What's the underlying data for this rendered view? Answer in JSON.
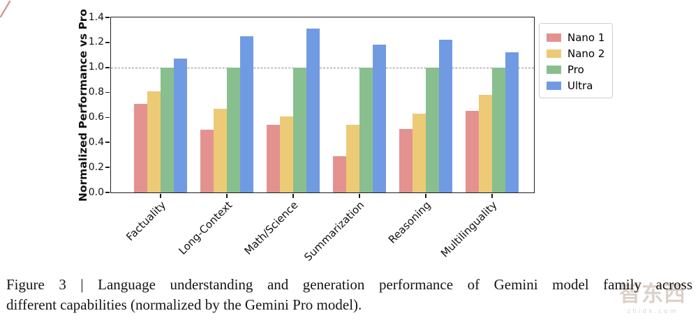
{
  "chart_data": {
    "type": "bar",
    "title": "",
    "ylabel": "Normalized Performance vs Pro",
    "xlabel": "",
    "categories": [
      "Factuality",
      "Long-Context",
      "Math/Science",
      "Summarization",
      "Reasoning",
      "Multilinguality"
    ],
    "series": [
      {
        "name": "Nano 1",
        "color": "#E39290",
        "values": [
          0.71,
          0.5,
          0.54,
          0.29,
          0.51,
          0.65
        ]
      },
      {
        "name": "Nano 2",
        "color": "#ECCA76",
        "values": [
          0.81,
          0.67,
          0.61,
          0.54,
          0.63,
          0.78
        ]
      },
      {
        "name": "Pro",
        "color": "#89BF8F",
        "values": [
          1.0,
          1.0,
          1.0,
          1.0,
          1.0,
          1.0
        ]
      },
      {
        "name": "Ultra",
        "color": "#709BE2",
        "values": [
          1.07,
          1.25,
          1.31,
          1.18,
          1.22,
          1.12
        ]
      }
    ],
    "ylim": [
      0,
      1.4
    ],
    "yticks": [
      "0.0",
      "0.2",
      "0.4",
      "0.6",
      "0.8",
      "1.0",
      "1.2",
      "1.4"
    ],
    "reference_line": {
      "value": 1.0,
      "color": "#8a8a8a",
      "style": "dashed"
    },
    "legend": {
      "position": "outside-right",
      "entries": [
        "Nano 1",
        "Nano 2",
        "Pro",
        "Ultra"
      ]
    },
    "grid": false,
    "xtick_rotation_deg": 45
  },
  "caption": {
    "line1": "Figure 3 | Language understanding and generation performance of Gemini model family across",
    "line2": "different capabilities (normalized by the Gemini Pro model)."
  },
  "watermark": {
    "logo_text": "智东西",
    "domain": "zhidx.com"
  },
  "annotation": {
    "pen_color": "#b5413f"
  }
}
